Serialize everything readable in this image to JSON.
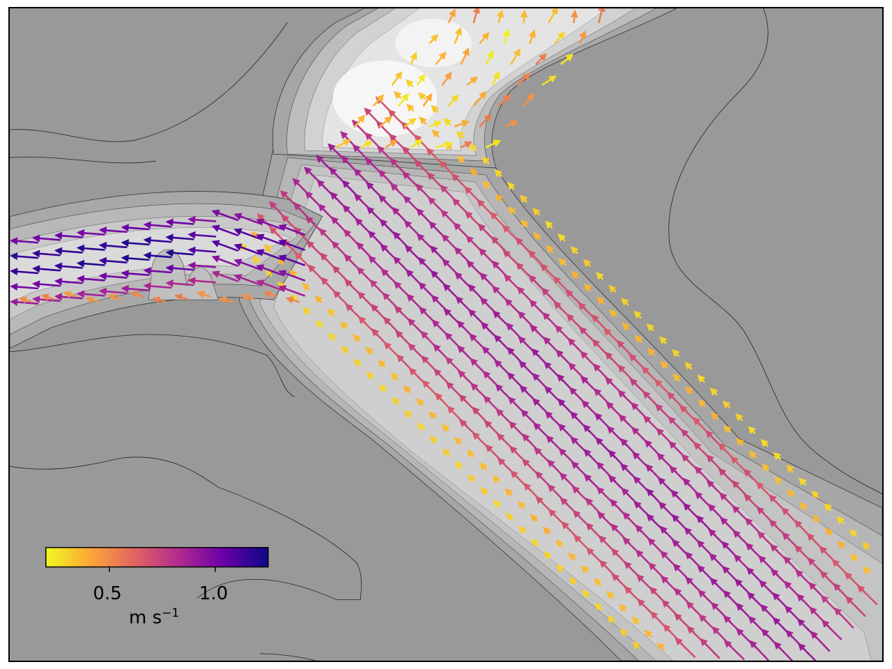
{
  "colorbar": {
    "colormap": "plasma",
    "colors": [
      "#f0f921",
      "#fca636",
      "#e16462",
      "#b12a90",
      "#6a00a8",
      "#0d0887"
    ],
    "range": [
      0.2,
      1.25
    ],
    "ticks": [
      {
        "value": 0.5,
        "label": "0.5"
      },
      {
        "value": 1.0,
        "label": "1.0"
      }
    ],
    "unit": {
      "base": "m s",
      "exponent": "−1"
    }
  },
  "map": {
    "land_color": "#999999",
    "channel_shades": [
      "#a8a8a8",
      "#b5b5b5",
      "#c2c2c2",
      "#cdcdcd",
      "#d7d7d7"
    ],
    "scour_hole_color": "#f6f6f6",
    "main_channel_speed": [
      0.55,
      0.9
    ],
    "west_channel_speed": [
      0.8,
      1.25
    ],
    "north_channel_speed": [
      0.2,
      0.55
    ]
  }
}
